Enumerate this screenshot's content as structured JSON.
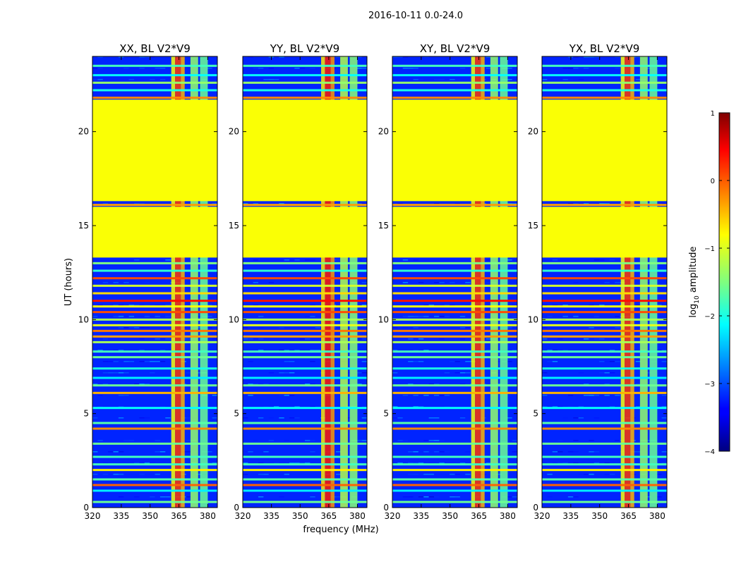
{
  "figure": {
    "suptitle": "2016-10-11 0.0-24.0",
    "xlabel": "frequency (MHz)",
    "ylabel": "UT (hours)"
  },
  "chart_data": {
    "type": "heatmap",
    "title": "2016-10-11 0.0-24.0",
    "xlabel": "frequency (MHz)",
    "ylabel": "UT (hours)",
    "xlim": [
      320,
      385
    ],
    "ylim": [
      0,
      24
    ],
    "xticks": [
      320,
      335,
      350,
      365,
      380
    ],
    "yticks": [
      0,
      5,
      10,
      15,
      20
    ],
    "colormap": "jet",
    "colorbar": {
      "label": "log10 amplitude",
      "label_base": "log",
      "label_sub": "10",
      "label_rest": " amplitude",
      "range": [
        -4,
        1
      ],
      "ticks": [
        1,
        0,
        -1,
        -2,
        -3,
        -4
      ],
      "tick_labels": [
        "1",
        "0",
        "−1",
        "−2",
        "−3",
        "−4"
      ]
    },
    "panels": [
      {
        "title": "XX, BL V2*V9"
      },
      {
        "title": "YY, BL V2*V9"
      },
      {
        "title": "XY, BL V2*V9"
      },
      {
        "title": "YX, BL V2*V9"
      }
    ],
    "background_log10_amplitude": -3.2,
    "flagged_value_log10_amplitude": -0.9,
    "flagged_ut_ranges": [
      [
        13.3,
        16.0
      ],
      [
        16.3,
        21.7
      ]
    ],
    "rfi_freq_bands_mhz": [
      [
        361,
        363
      ],
      [
        363,
        366
      ],
      [
        366,
        368
      ],
      [
        371,
        375
      ],
      [
        376,
        380
      ]
    ],
    "rfi_band_strength": [
      -0.9,
      0.1,
      -0.5,
      -1.4,
      -1.6
    ],
    "hot_hours": [
      [
        0.3,
        -1.6
      ],
      [
        0.9,
        -1.9
      ],
      [
        1.2,
        0.2
      ],
      [
        1.5,
        -1.7
      ],
      [
        2.0,
        -0.5
      ],
      [
        2.3,
        -1.5
      ],
      [
        2.7,
        -1.8
      ],
      [
        3.4,
        -1.3
      ],
      [
        4.2,
        0.0
      ],
      [
        4.5,
        -1.7
      ],
      [
        5.3,
        -1.8
      ],
      [
        6.1,
        -0.2
      ],
      [
        6.5,
        -1.6
      ],
      [
        6.9,
        -1.9
      ],
      [
        7.4,
        -1.7
      ],
      [
        8.0,
        -1.6
      ],
      [
        8.3,
        -1.5
      ],
      [
        8.8,
        -1.0
      ],
      [
        9.1,
        -0.4
      ],
      [
        9.4,
        0.1
      ],
      [
        9.7,
        -0.7
      ],
      [
        10.0,
        -1.3
      ],
      [
        10.4,
        0.3
      ],
      [
        10.7,
        -0.6
      ],
      [
        11.0,
        0.3
      ],
      [
        11.4,
        -0.4
      ],
      [
        11.8,
        -0.8
      ],
      [
        12.2,
        0.0
      ],
      [
        12.6,
        -1.6
      ],
      [
        13.0,
        -1.2
      ],
      [
        16.1,
        -0.4
      ],
      [
        21.8,
        0.0
      ],
      [
        22.2,
        -1.7
      ],
      [
        22.6,
        -1.4
      ],
      [
        23.0,
        -1.8
      ],
      [
        23.5,
        -1.5
      ]
    ]
  }
}
